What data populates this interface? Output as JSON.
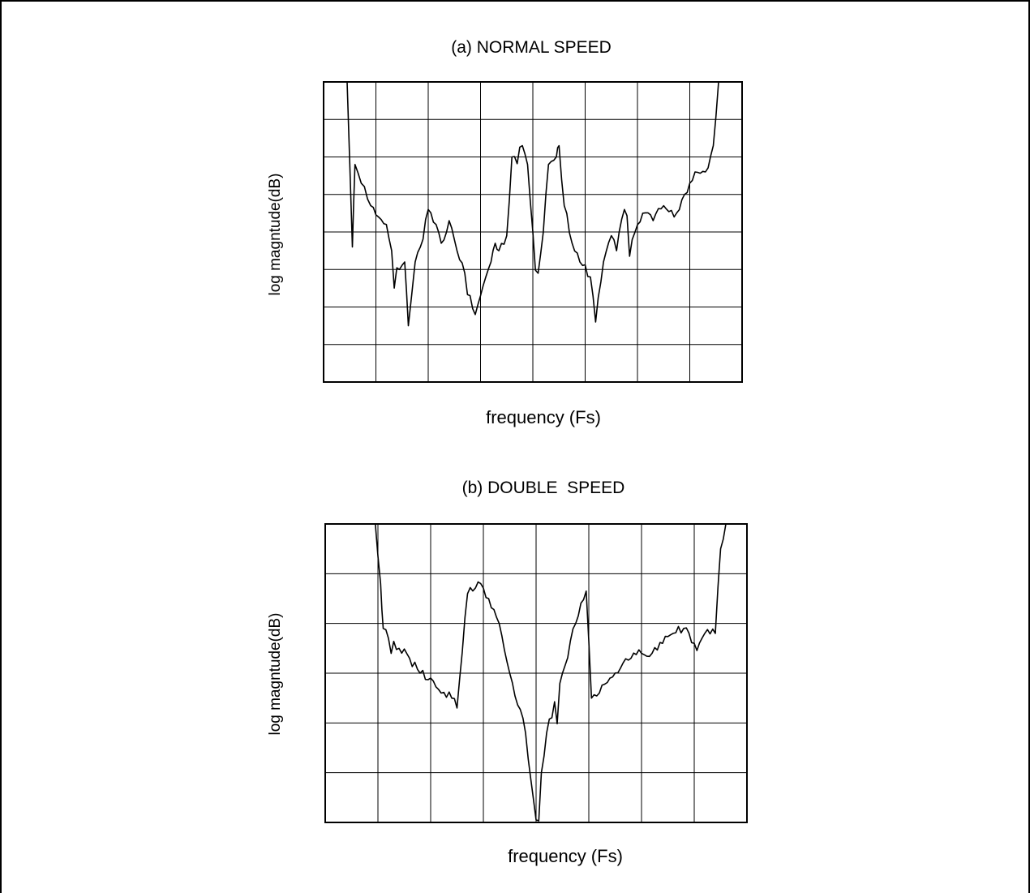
{
  "chart_data": [
    {
      "type": "line",
      "title": "(a) NORMAL SPEED",
      "xlabel": "frequency (Fs)",
      "ylabel": "log magntude(dB)",
      "grid": true,
      "grid_divisions": {
        "x": 8,
        "y": 8
      },
      "series": [
        {
          "description_values_x_div": [
            0.45,
            0.55,
            0.6,
            0.72,
            0.9,
            1.05,
            1.2,
            1.3,
            1.45,
            1.55,
            1.62,
            1.75,
            1.85,
            2.0,
            2.15,
            2.25,
            2.4,
            2.55,
            2.7,
            2.9,
            3.0,
            3.1,
            3.2,
            3.28,
            3.35,
            3.5,
            3.6,
            3.8,
            3.9,
            4.0,
            4.1,
            4.2,
            4.3,
            4.45,
            4.5,
            4.6,
            4.75,
            4.9,
            5.1,
            5.2,
            5.35,
            5.5,
            5.6,
            5.75,
            5.9,
            6.1,
            6.3,
            6.5,
            6.7,
            6.9,
            7.1,
            7.3,
            7.45,
            7.55
          ],
          "values_y_div": [
            8.0,
            3.6,
            5.8,
            5.3,
            4.7,
            4.4,
            4.2,
            3.5,
            3.0,
            3.2,
            1.5,
            3.2,
            3.6,
            4.6,
            4.2,
            3.7,
            4.3,
            3.5,
            2.9,
            1.8,
            2.3,
            2.8,
            3.2,
            3.7,
            3.5,
            3.9,
            6.0,
            6.3,
            5.8,
            4.0,
            2.9,
            4.0,
            5.8,
            6.0,
            6.3,
            4.7,
            3.7,
            3.2,
            2.8,
            1.6,
            3.2,
            3.9,
            3.5,
            4.6,
            3.8,
            4.5,
            4.3,
            4.7,
            4.4,
            5.0,
            5.6,
            5.6,
            6.3,
            8.0
          ]
        }
      ]
    },
    {
      "type": "line",
      "title": "(b) DOUBLE  SPEED",
      "xlabel": "frequency (Fs)",
      "ylabel": "log magntude(dB)",
      "grid": true,
      "grid_divisions": {
        "x": 8,
        "y": 6
      },
      "series": [
        {
          "values_x_div": [
            0.95,
            1.05,
            1.1,
            1.2,
            1.4,
            1.6,
            1.8,
            2.0,
            2.2,
            2.4,
            2.5,
            2.7,
            2.95,
            3.1,
            3.3,
            3.5,
            3.8,
            4.0,
            4.2,
            4.5,
            4.75,
            4.95,
            5.05,
            5.2,
            5.4,
            5.6,
            5.8,
            6.0,
            6.2,
            6.4,
            6.6,
            6.8,
            7.0,
            7.2,
            7.4,
            7.5,
            7.6
          ],
          "values_y_div": [
            6.0,
            4.8,
            3.9,
            3.7,
            3.5,
            3.3,
            3.0,
            2.9,
            2.6,
            2.5,
            2.3,
            4.6,
            4.8,
            4.5,
            4.0,
            3.0,
            1.8,
            0.05,
            1.8,
            3.0,
            4.0,
            4.65,
            2.5,
            2.6,
            2.9,
            3.1,
            3.3,
            3.4,
            3.4,
            3.6,
            3.8,
            3.9,
            3.6,
            3.8,
            3.8,
            5.5,
            6.0
          ]
        }
      ]
    }
  ]
}
